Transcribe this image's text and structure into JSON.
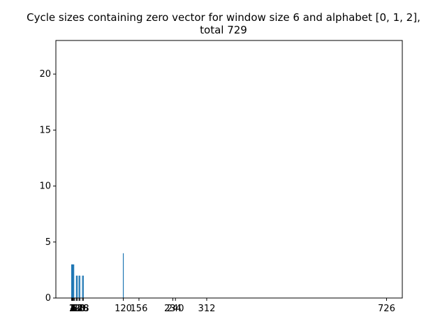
{
  "chart_data": {
    "type": "bar",
    "title": "Cycle sizes containing zero vector for window size 6 and alphabet [0, 1, 2],",
    "subtitle": "total 729",
    "xlabel": "",
    "ylabel": "",
    "x": [
      1,
      2,
      3,
      4,
      6,
      12,
      14,
      18,
      20,
      26,
      28,
      120,
      156,
      234,
      240,
      312,
      726
    ],
    "values": [
      3,
      3,
      3,
      3,
      3,
      2,
      2,
      2,
      2,
      2,
      2,
      4,
      0,
      0,
      0,
      0,
      0
    ],
    "xticks": [
      1,
      2,
      3,
      4,
      6,
      8,
      12,
      14,
      18,
      20,
      26,
      28,
      120,
      156,
      234,
      240,
      312,
      726
    ],
    "yticks": [
      0,
      5,
      10,
      15,
      20
    ],
    "xlim": [
      -35.25,
      762.25
    ],
    "ylim": [
      0,
      23
    ],
    "grid": false,
    "colors": {
      "bar": "#1f77b4",
      "axes": "#000000",
      "background": "#ffffff"
    }
  }
}
